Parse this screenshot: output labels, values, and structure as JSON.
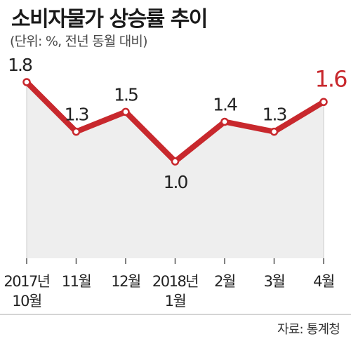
{
  "title": "소비자물가 상승률 추이",
  "subtitle": "(단위: %, 전년 동월 대비)",
  "source": "자료: 통계청",
  "colors": {
    "line": "#c8282d",
    "area": "#eeeeee",
    "axis": "#aaaaaa",
    "text": "#222222"
  },
  "chart_data": {
    "type": "line",
    "categories": [
      "2017년\n10월",
      "11월",
      "12월",
      "2018년\n1월",
      "2월",
      "3월",
      "4월"
    ],
    "values": [
      1.8,
      1.3,
      1.5,
      1.0,
      1.4,
      1.3,
      1.6
    ],
    "value_labels": [
      "1.8",
      "1.3",
      "1.5",
      "1.0",
      "1.4",
      "1.3",
      "1.6"
    ],
    "highlight_index": 6,
    "title": "소비자물가 상승률 추이",
    "xlabel": "",
    "ylabel": "",
    "grid": false,
    "legend": "none"
  }
}
